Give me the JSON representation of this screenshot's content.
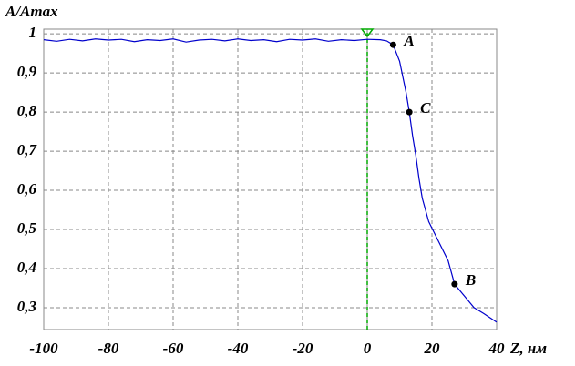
{
  "chart_data": {
    "type": "line",
    "ylabel": "A/Amax",
    "xlabel": "Z, нм",
    "x": [
      -100,
      -96,
      -92,
      -88,
      -84,
      -80,
      -76,
      -72,
      -68,
      -64,
      -60,
      -56,
      -52,
      -48,
      -44,
      -40,
      -36,
      -32,
      -28,
      -24,
      -20,
      -16,
      -12,
      -8,
      -4,
      0,
      4,
      6,
      8,
      10,
      12,
      13,
      14,
      15,
      16,
      17,
      19,
      22,
      25,
      27,
      30,
      33,
      36,
      40
    ],
    "series": [
      {
        "color": "#0000cc",
        "values": [
          0.985,
          0.981,
          0.986,
          0.982,
          0.987,
          0.984,
          0.986,
          0.98,
          0.985,
          0.983,
          0.987,
          0.979,
          0.984,
          0.986,
          0.982,
          0.987,
          0.983,
          0.985,
          0.98,
          0.986,
          0.984,
          0.987,
          0.981,
          0.985,
          0.983,
          0.986,
          0.985,
          0.982,
          0.972,
          0.93,
          0.85,
          0.8,
          0.74,
          0.69,
          0.63,
          0.58,
          0.52,
          0.47,
          0.42,
          0.36,
          0.33,
          0.3,
          0.285,
          0.263
        ]
      }
    ],
    "markers": [
      {
        "label": "A",
        "x": 8,
        "y": 0.972
      },
      {
        "label": "C",
        "x": 13,
        "y": 0.8
      },
      {
        "label": "B",
        "x": 27,
        "y": 0.36
      }
    ],
    "marker_line": {
      "x": 0,
      "color": "#00aa00"
    },
    "xlim": [
      -100,
      40
    ],
    "ylim": [
      0.244,
      1.012
    ],
    "xticks": [
      -100,
      -80,
      -60,
      -40,
      -20,
      0,
      20,
      40
    ],
    "yticks": [
      {
        "value": 0.3,
        "label": "0,3"
      },
      {
        "value": 0.4,
        "label": "0,4"
      },
      {
        "value": 0.5,
        "label": "0,5"
      },
      {
        "value": 0.6,
        "label": "0,6"
      },
      {
        "value": 0.7,
        "label": "0,7"
      },
      {
        "value": 0.8,
        "label": "0,8"
      },
      {
        "value": 0.9,
        "label": "0,9"
      },
      1
    ],
    "grid": true
  }
}
